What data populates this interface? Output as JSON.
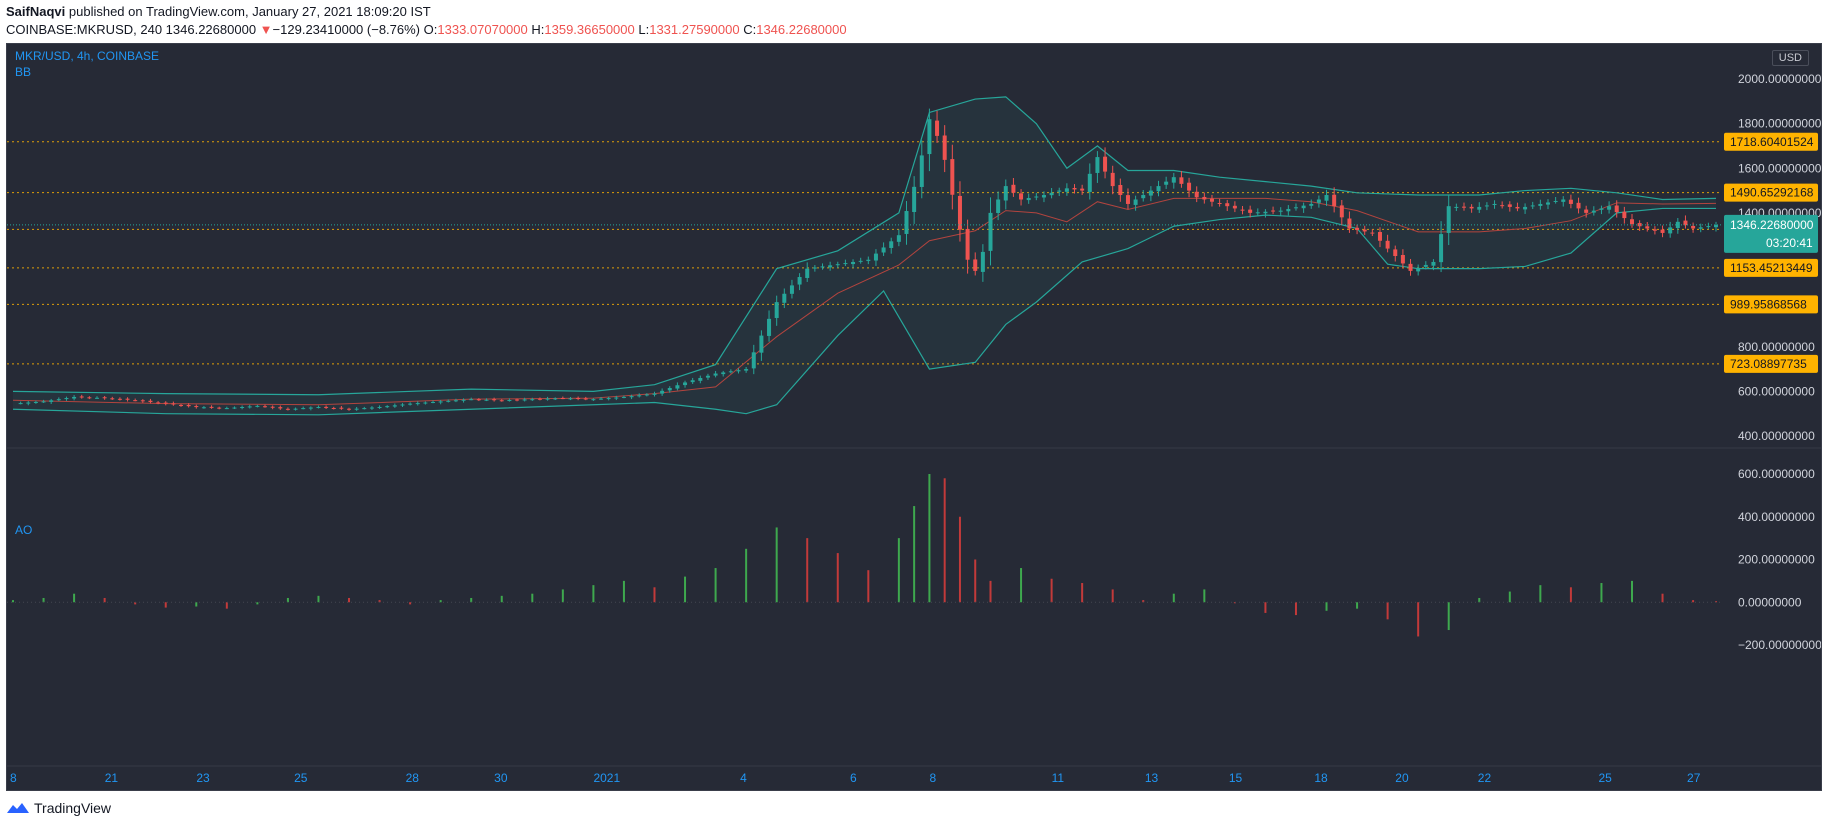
{
  "header": {
    "author": "SaifNaqvi",
    "published": "published on TradingView.com, January 27, 2021 18:09:20 IST",
    "symbol": "COINBASE:MKRUSD, 240",
    "last": "1346.22680000",
    "arrow": "▼",
    "change": "−129.23410000 (−8.76%)",
    "o_label": "O:",
    "o": "1333.07070000",
    "h_label": "H:",
    "h": "1359.36650000",
    "l_label": "L:",
    "l": "1331.27590000",
    "c_label": "C:",
    "c": "1346.22680000"
  },
  "panel": {
    "pair": "MKR/USD, 4h, COINBASE",
    "indicator": "BB",
    "currency": "USD",
    "ao_label": "AO"
  },
  "colors": {
    "up": "#26a69a",
    "down": "#ef5350",
    "bb": "#26a69a",
    "basis": "#b2443e",
    "level": "#ffb300",
    "background": "#262a36",
    "ao_up": "#3ea84e",
    "ao_down": "#c23a3a"
  },
  "footer": {
    "logo": "TradingView",
    "logo_icon": "tradingview-logo-icon"
  },
  "chart_data": [
    {
      "type": "candlestick",
      "title": "MKR/USD, 4h, COINBASE",
      "ylim": [
        400,
        2000
      ],
      "y_ticks": [
        "2000.00000000",
        "1800.00000000",
        "1600.00000000",
        "1400.00000000",
        "800.00000000",
        "600.00000000",
        "400.00000000"
      ],
      "x_ticks": [
        "8",
        "21",
        "23",
        "25",
        "28",
        "30",
        "2021",
        "4",
        "6",
        "8",
        "11",
        "13",
        "15",
        "18",
        "20",
        "22",
        "25",
        "27"
      ],
      "horizontal_levels": [
        "1718.60401524",
        "1490.65292168",
        "1325.98352402",
        "1153.45213449",
        "989.95868568",
        "723.08897735"
      ],
      "current_price": "1346.22680000",
      "countdown": "03:20:41",
      "close_path": [
        [
          0,
          545
        ],
        [
          20,
          555
        ],
        [
          40,
          575
        ],
        [
          60,
          570
        ],
        [
          80,
          560
        ],
        [
          100,
          545
        ],
        [
          120,
          530
        ],
        [
          140,
          525
        ],
        [
          160,
          535
        ],
        [
          180,
          520
        ],
        [
          200,
          530
        ],
        [
          220,
          520
        ],
        [
          240,
          530
        ],
        [
          260,
          545
        ],
        [
          280,
          555
        ],
        [
          300,
          565
        ],
        [
          320,
          560
        ],
        [
          340,
          565
        ],
        [
          360,
          570
        ],
        [
          380,
          565
        ],
        [
          400,
          575
        ],
        [
          420,
          590
        ],
        [
          440,
          640
        ],
        [
          460,
          680
        ],
        [
          480,
          700
        ],
        [
          500,
          1000
        ],
        [
          520,
          1150
        ],
        [
          540,
          1170
        ],
        [
          560,
          1190
        ],
        [
          580,
          1300
        ],
        [
          592,
          1560
        ],
        [
          600,
          1820
        ],
        [
          608,
          1700
        ],
        [
          616,
          1450
        ],
        [
          624,
          1200
        ],
        [
          632,
          1120
        ],
        [
          640,
          1400
        ],
        [
          650,
          1520
        ],
        [
          660,
          1460
        ],
        [
          675,
          1480
        ],
        [
          690,
          1510
        ],
        [
          700,
          1500
        ],
        [
          710,
          1650
        ],
        [
          720,
          1520
        ],
        [
          730,
          1440
        ],
        [
          745,
          1500
        ],
        [
          760,
          1560
        ],
        [
          775,
          1470
        ],
        [
          790,
          1440
        ],
        [
          810,
          1400
        ],
        [
          830,
          1410
        ],
        [
          850,
          1440
        ],
        [
          860,
          1480
        ],
        [
          875,
          1330
        ],
        [
          890,
          1310
        ],
        [
          900,
          1240
        ],
        [
          915,
          1140
        ],
        [
          930,
          1180
        ],
        [
          940,
          1430
        ],
        [
          955,
          1420
        ],
        [
          970,
          1440
        ],
        [
          985,
          1420
        ],
        [
          1000,
          1440
        ],
        [
          1015,
          1460
        ],
        [
          1030,
          1400
        ],
        [
          1045,
          1430
        ],
        [
          1060,
          1350
        ],
        [
          1080,
          1310
        ],
        [
          1090,
          1360
        ],
        [
          1100,
          1330
        ],
        [
          1115,
          1346
        ]
      ],
      "bb_upper": [
        [
          0,
          600
        ],
        [
          100,
          590
        ],
        [
          200,
          585
        ],
        [
          300,
          610
        ],
        [
          380,
          600
        ],
        [
          420,
          630
        ],
        [
          460,
          720
        ],
        [
          500,
          1150
        ],
        [
          540,
          1230
        ],
        [
          580,
          1400
        ],
        [
          600,
          1850
        ],
        [
          630,
          1910
        ],
        [
          650,
          1920
        ],
        [
          670,
          1800
        ],
        [
          690,
          1600
        ],
        [
          710,
          1700
        ],
        [
          730,
          1590
        ],
        [
          760,
          1590
        ],
        [
          790,
          1560
        ],
        [
          820,
          1540
        ],
        [
          850,
          1520
        ],
        [
          880,
          1490
        ],
        [
          920,
          1480
        ],
        [
          960,
          1480
        ],
        [
          990,
          1500
        ],
        [
          1020,
          1510
        ],
        [
          1050,
          1490
        ],
        [
          1080,
          1460
        ],
        [
          1115,
          1465
        ]
      ],
      "bb_lower": [
        [
          0,
          520
        ],
        [
          100,
          500
        ],
        [
          200,
          495
        ],
        [
          300,
          520
        ],
        [
          380,
          540
        ],
        [
          420,
          550
        ],
        [
          460,
          520
        ],
        [
          480,
          500
        ],
        [
          500,
          540
        ],
        [
          540,
          850
        ],
        [
          570,
          1050
        ],
        [
          600,
          700
        ],
        [
          630,
          730
        ],
        [
          650,
          900
        ],
        [
          670,
          1000
        ],
        [
          700,
          1180
        ],
        [
          730,
          1240
        ],
        [
          760,
          1340
        ],
        [
          790,
          1370
        ],
        [
          820,
          1390
        ],
        [
          850,
          1380
        ],
        [
          880,
          1330
        ],
        [
          900,
          1170
        ],
        [
          920,
          1150
        ],
        [
          960,
          1150
        ],
        [
          990,
          1160
        ],
        [
          1020,
          1220
        ],
        [
          1050,
          1400
        ],
        [
          1080,
          1420
        ],
        [
          1115,
          1420
        ]
      ]
    },
    {
      "type": "bar",
      "title": "AO",
      "ylim": [
        -200,
        600
      ],
      "y_ticks": [
        "600.00000000",
        "400.00000000",
        "200.00000000",
        "0.00000000",
        "−200.00000000"
      ],
      "x": [
        0,
        20,
        40,
        60,
        80,
        100,
        120,
        140,
        160,
        180,
        200,
        220,
        240,
        260,
        280,
        300,
        320,
        340,
        360,
        380,
        400,
        420,
        440,
        460,
        480,
        500,
        520,
        540,
        560,
        580,
        590,
        600,
        610,
        620,
        630,
        640,
        660,
        680,
        700,
        720,
        740,
        760,
        780,
        800,
        820,
        840,
        860,
        880,
        900,
        920,
        940,
        960,
        980,
        1000,
        1020,
        1040,
        1060,
        1080,
        1100,
        1115
      ],
      "values": [
        10,
        20,
        40,
        20,
        -10,
        -25,
        -20,
        -30,
        -10,
        20,
        30,
        20,
        10,
        -10,
        10,
        20,
        30,
        40,
        60,
        80,
        100,
        70,
        120,
        160,
        250,
        350,
        300,
        230,
        150,
        300,
        450,
        600,
        580,
        400,
        200,
        100,
        160,
        110,
        90,
        60,
        10,
        40,
        60,
        0,
        -50,
        -60,
        -40,
        -30,
        -80,
        -160,
        -130,
        20,
        50,
        80,
        70,
        90,
        100,
        40,
        10,
        5
      ]
    }
  ]
}
